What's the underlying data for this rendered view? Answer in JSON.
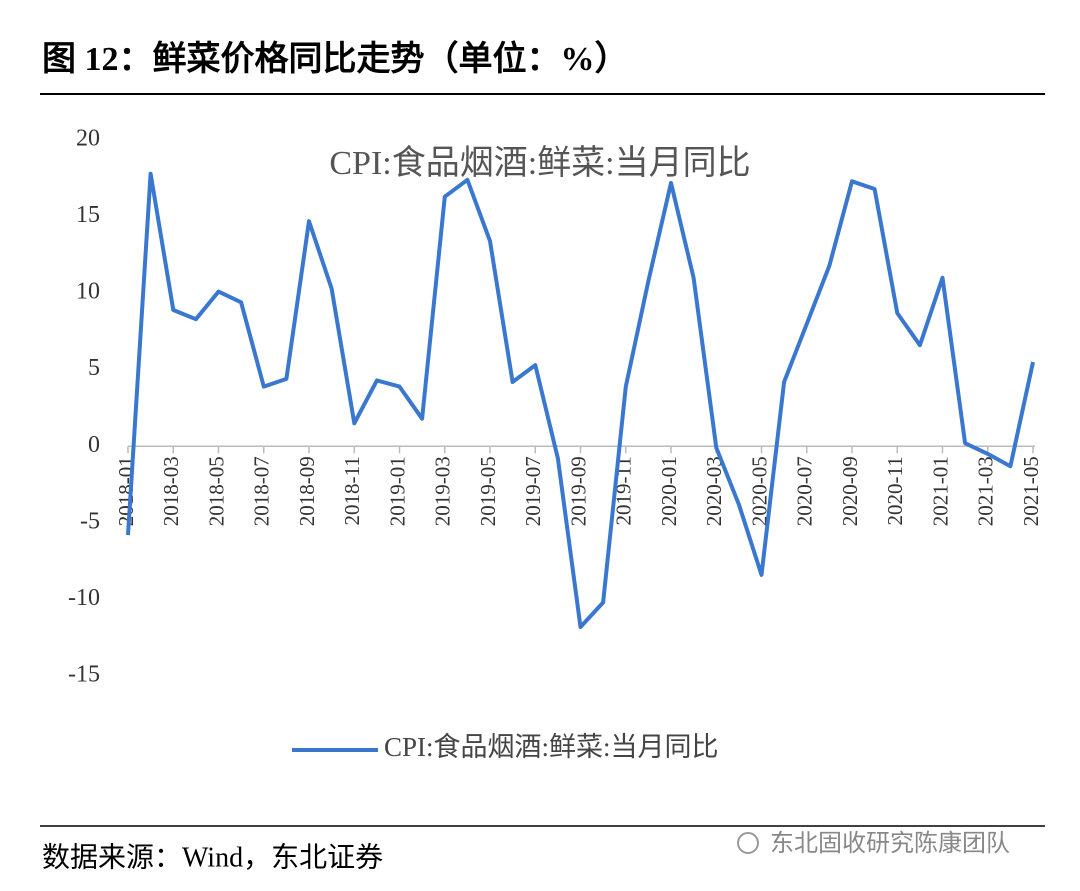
{
  "header": {
    "title": "图 12：鲜菜价格同比走势（单位：%）"
  },
  "chart_data": {
    "type": "line",
    "title": "CPI:食品烟酒:鲜菜:当月同比",
    "categories": [
      "2018-01",
      null,
      "2018-03",
      null,
      "2018-05",
      null,
      "2018-07",
      null,
      "2018-09",
      null,
      "2018-11",
      null,
      "2019-01",
      null,
      "2019-03",
      null,
      "2019-05",
      null,
      "2019-07",
      null,
      "2019-09",
      null,
      "2019-11",
      null,
      "2020-01",
      null,
      "2020-03",
      null,
      "2020-05",
      null,
      "2020-07",
      null,
      "2020-09",
      null,
      "2020-11",
      null,
      "2021-01",
      null,
      "2021-03",
      null,
      "2021-05"
    ],
    "series": [
      {
        "name": "CPI:食品烟酒:鲜菜:当月同比",
        "color": "#3a78d0",
        "values": [
          -5.8,
          17.8,
          8.9,
          8.3,
          10.1,
          9.4,
          3.9,
          4.4,
          14.7,
          10.3,
          1.5,
          4.3,
          3.9,
          1.8,
          16.3,
          17.4,
          13.4,
          4.2,
          5.3,
          -0.8,
          -11.8,
          -10.2,
          3.9,
          10.8,
          17.2,
          11.0,
          -0.1,
          -3.8,
          -8.4,
          4.2,
          8.0,
          11.8,
          17.3,
          16.8,
          8.7,
          6.6,
          11.0,
          0.2,
          -0.5,
          -1.3,
          5.5
        ]
      }
    ],
    "ylim": [
      -15,
      20
    ],
    "yticks": [
      -15,
      -10,
      -5,
      0,
      5,
      10,
      15,
      20
    ],
    "grid": false,
    "legend": "bottom"
  },
  "footer": {
    "source": "数据来源：Wind，东北证券",
    "watermark": "东北固收研究陈康团队"
  }
}
